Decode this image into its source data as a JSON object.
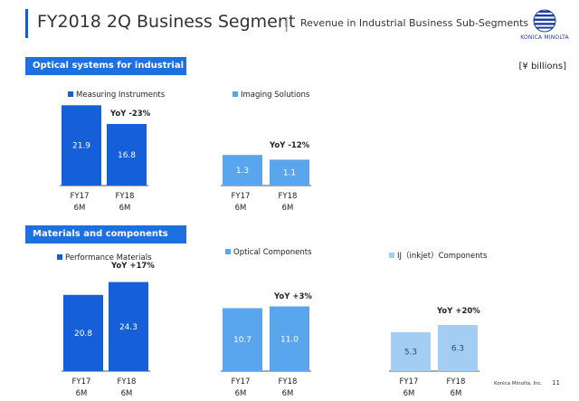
{
  "header": {
    "title": "FY2018 2Q Business Segment",
    "separator": "|",
    "subtitle": "Revenue in Industrial Business Sub-Segments"
  },
  "logo": {
    "text": "KONICA MINOLTA"
  },
  "sections": {
    "optical": "Optical systems for industrial use",
    "materials": "Materials and components"
  },
  "unit": "[¥ billions]",
  "footer": {
    "company": "Konica Minolta, Inc.",
    "page": "11"
  },
  "colors": {
    "accent": "#1e6fe0",
    "dark_bar": "#1560d8",
    "mid_bar": "#5aa6ee",
    "light_bar": "#a4cdf4"
  },
  "chart_data": [
    {
      "type": "bar",
      "legend": "Measuring Instruments",
      "categories": [
        "FY17",
        "FY18"
      ],
      "period": "6M",
      "values": [
        21.9,
        16.8
      ],
      "yoy": "YoY  -23%",
      "color": "#1560d8"
    },
    {
      "type": "bar",
      "legend": "Imaging Solutions",
      "categories": [
        "FY17",
        "FY18"
      ],
      "period": "6M",
      "values": [
        1.3,
        1.1
      ],
      "yoy": "YoY  -12%",
      "color": "#5aa6ee"
    },
    {
      "type": "bar",
      "legend": "Performance Materials",
      "categories": [
        "FY17",
        "FY18"
      ],
      "period": "6M",
      "values": [
        20.8,
        24.3
      ],
      "yoy": "YoY +17%",
      "color": "#1560d8"
    },
    {
      "type": "bar",
      "legend": "Optical Components",
      "categories": [
        "FY17",
        "FY18"
      ],
      "period": "6M",
      "values": [
        10.7,
        11.0
      ],
      "yoy": "YoY +3%",
      "color": "#5aa6ee"
    },
    {
      "type": "bar",
      "legend": "IJ（inkjet）Components",
      "categories": [
        "FY17",
        "FY18"
      ],
      "period": "6M",
      "values": [
        5.3,
        6.3
      ],
      "yoy": "YoY +20%",
      "color": "#a4cdf4"
    }
  ]
}
